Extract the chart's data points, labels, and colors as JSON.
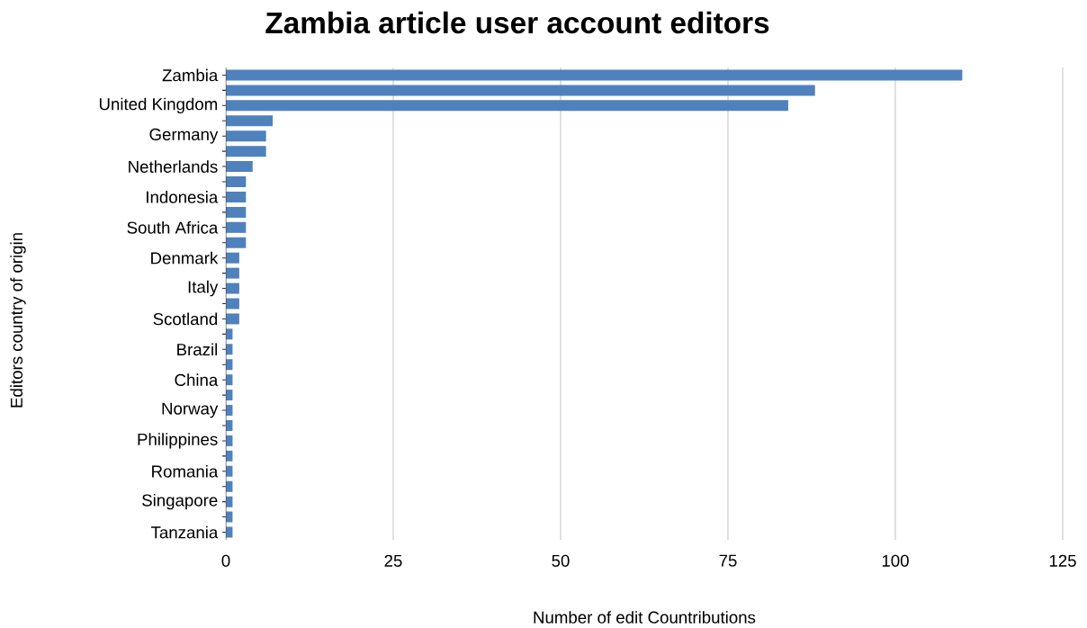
{
  "chart_data": {
    "type": "bar",
    "orientation": "horizontal",
    "title": "Zambia article user account editors",
    "xlabel": "Number of edit Countributions",
    "ylabel": "Editors country of origin",
    "categories": [
      "Zambia",
      null,
      "United Kingdom",
      null,
      "Germany",
      null,
      "Netherlands",
      null,
      "Indonesia",
      null,
      "South Africa",
      null,
      "Denmark",
      null,
      "Italy",
      null,
      "Scotland",
      null,
      "Brazil",
      null,
      "China",
      null,
      "Norway",
      null,
      "Philippines",
      null,
      "Romania",
      null,
      "Singapore",
      null,
      "Tanzania"
    ],
    "values": [
      110,
      88,
      84,
      7,
      6,
      6,
      4,
      3,
      3,
      3,
      3,
      3,
      2,
      2,
      2,
      2,
      2,
      1,
      1,
      1,
      1,
      1,
      1,
      1,
      1,
      1,
      1,
      1,
      1,
      1,
      1
    ],
    "color": "#4f81bd",
    "xlim": [
      0,
      125
    ],
    "xticks": [
      0,
      25,
      50,
      75,
      100,
      125
    ],
    "grid": "x"
  }
}
